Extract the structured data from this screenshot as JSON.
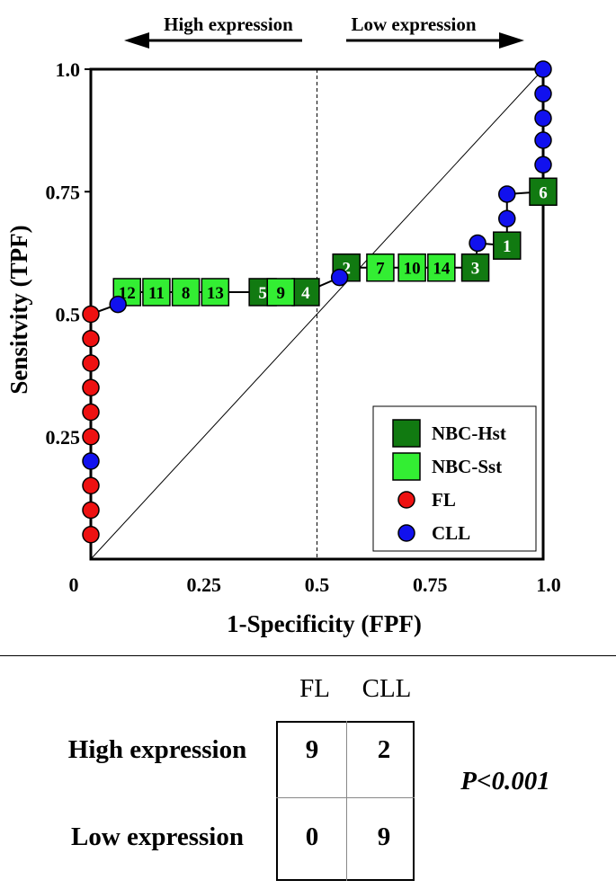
{
  "chart_data": {
    "type": "scatter",
    "title": "",
    "xlabel": "1-Specificity (FPF)",
    "ylabel": "Sensitvity (TPF)",
    "xlim": [
      0,
      1
    ],
    "ylim": [
      0,
      1
    ],
    "x_ticks": [
      "0",
      "0.25",
      "0.5",
      "0.75",
      "1.0"
    ],
    "y_ticks": [
      "0.25",
      "0.5",
      "0.75",
      "1.0"
    ],
    "arrow_left_label": "High expression",
    "arrow_right_label": "Low expression",
    "cutoff_x": 0.5,
    "diagonal_reference": true,
    "legend": {
      "position": "bottom-right",
      "items": [
        {
          "label": "NBC-Hst",
          "symbol": "square",
          "color": "#117a11"
        },
        {
          "label": "NBC-Sst",
          "symbol": "square",
          "color": "#33ee33"
        },
        {
          "label": "FL",
          "symbol": "circle",
          "color": "#ee1111"
        },
        {
          "label": "CLL",
          "symbol": "circle",
          "color": "#1111ee"
        }
      ]
    },
    "series": [
      {
        "name": "FL",
        "color": "#ee1111",
        "points": [
          {
            "x": 0.0,
            "y": 0.05
          },
          {
            "x": 0.0,
            "y": 0.1
          },
          {
            "x": 0.0,
            "y": 0.15
          },
          {
            "x": 0.0,
            "y": 0.25
          },
          {
            "x": 0.0,
            "y": 0.3
          },
          {
            "x": 0.0,
            "y": 0.35
          },
          {
            "x": 0.0,
            "y": 0.4
          },
          {
            "x": 0.0,
            "y": 0.45
          },
          {
            "x": 0.0,
            "y": 0.5
          }
        ]
      },
      {
        "name": "CLL",
        "color": "#1111ee",
        "points": [
          {
            "x": 0.0,
            "y": 0.2
          },
          {
            "x": 0.06,
            "y": 0.52
          },
          {
            "x": 0.55,
            "y": 0.575
          },
          {
            "x": 0.855,
            "y": 0.645
          },
          {
            "x": 0.92,
            "y": 0.695
          },
          {
            "x": 0.92,
            "y": 0.745
          },
          {
            "x": 1.0,
            "y": 0.805
          },
          {
            "x": 1.0,
            "y": 0.855
          },
          {
            "x": 1.0,
            "y": 0.9
          },
          {
            "x": 1.0,
            "y": 0.95
          },
          {
            "x": 1.0,
            "y": 1.0
          }
        ]
      },
      {
        "name": "NBC-Hst",
        "color": "#117a11",
        "points": [
          {
            "label": "5",
            "x": 0.38,
            "y": 0.545
          },
          {
            "label": "4",
            "x": 0.475,
            "y": 0.545
          },
          {
            "label": "2",
            "x": 0.565,
            "y": 0.595
          },
          {
            "label": "3",
            "x": 0.85,
            "y": 0.595
          },
          {
            "label": "1",
            "x": 0.92,
            "y": 0.64
          },
          {
            "label": "6",
            "x": 1.0,
            "y": 0.75
          }
        ]
      },
      {
        "name": "NBC-Sst",
        "color": "#33ee33",
        "points": [
          {
            "label": "12",
            "x": 0.08,
            "y": 0.545
          },
          {
            "label": "11",
            "x": 0.145,
            "y": 0.545
          },
          {
            "label": "8",
            "x": 0.21,
            "y": 0.545
          },
          {
            "label": "13",
            "x": 0.275,
            "y": 0.545
          },
          {
            "label": "9",
            "x": 0.42,
            "y": 0.545
          },
          {
            "label": "7",
            "x": 0.64,
            "y": 0.595
          },
          {
            "label": "10",
            "x": 0.71,
            "y": 0.595
          },
          {
            "label": "14",
            "x": 0.775,
            "y": 0.595
          }
        ]
      }
    ],
    "connector_path": [
      {
        "x": 0.0,
        "y": 0.5
      },
      {
        "x": 0.06,
        "y": 0.52
      },
      {
        "x": 0.08,
        "y": 0.545
      },
      {
        "x": 0.475,
        "y": 0.545
      },
      {
        "x": 0.55,
        "y": 0.575
      },
      {
        "x": 0.565,
        "y": 0.595
      },
      {
        "x": 0.85,
        "y": 0.595
      },
      {
        "x": 0.855,
        "y": 0.645
      },
      {
        "x": 0.92,
        "y": 0.64
      },
      {
        "x": 0.92,
        "y": 0.745
      },
      {
        "x": 1.0,
        "y": 0.75
      },
      {
        "x": 1.0,
        "y": 1.0
      }
    ]
  },
  "contingency": {
    "col_headers": [
      "FL",
      "CLL"
    ],
    "row_headers": [
      "High expression",
      "Low expression"
    ],
    "cells": [
      [
        "9",
        "2"
      ],
      [
        "0",
        "9"
      ]
    ],
    "p_value": "P<0.001"
  }
}
